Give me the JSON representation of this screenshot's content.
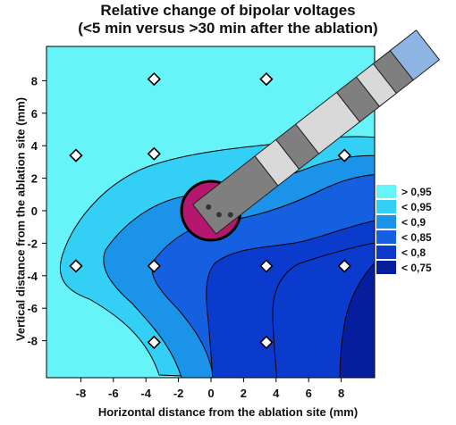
{
  "chart_data": {
    "type": "contour",
    "title": [
      "Relative change of bipolar voltages",
      "(<5 min versus >30 min after the ablation)"
    ],
    "xlabel": "Horizontal distance from the ablation site (mm)",
    "ylabel": "Vertical distance from the ablation site (mm)",
    "xlim": [
      -10,
      10
    ],
    "ylim": [
      -10,
      10
    ],
    "x_ticks": [
      -8,
      -6,
      -4,
      -2,
      0,
      2,
      4,
      6,
      8
    ],
    "y_ticks": [
      8,
      6,
      4,
      2,
      0,
      -2,
      -4,
      -6,
      -8
    ],
    "legend": [
      {
        "label": "> 0,95",
        "color": "#66f4f9"
      },
      {
        "label": "< 0,95",
        "color": "#33cff5"
      },
      {
        "label": "< 0,9",
        "color": "#1a93e8"
      },
      {
        "label": "< 0,85",
        "color": "#1560e0"
      },
      {
        "label": "< 0,8",
        "color": "#0b3bcc"
      },
      {
        "label": "< 0,75",
        "color": "#061e9e"
      }
    ],
    "measurement_points": [
      {
        "x": -8.3,
        "y": 3.4
      },
      {
        "x": -3.5,
        "y": 8.1
      },
      {
        "x": -3.5,
        "y": 3.5
      },
      {
        "x": 3.4,
        "y": 8.1
      },
      {
        "x": 8.2,
        "y": 3.4
      },
      {
        "x": -8.3,
        "y": -3.4
      },
      {
        "x": -3.5,
        "y": -3.4
      },
      {
        "x": 3.4,
        "y": -3.4
      },
      {
        "x": 8.2,
        "y": -3.4
      },
      {
        "x": -3.5,
        "y": -8.1
      },
      {
        "x": 3.4,
        "y": -8.1
      }
    ],
    "ablation_site": {
      "x": 0,
      "y": 0
    },
    "colors": {
      "lesion": "#b5176f",
      "catheter_dark": "#7f7f7f",
      "catheter_light": "#d9d9d9",
      "catheter_tip": "#8eb4e3"
    }
  }
}
